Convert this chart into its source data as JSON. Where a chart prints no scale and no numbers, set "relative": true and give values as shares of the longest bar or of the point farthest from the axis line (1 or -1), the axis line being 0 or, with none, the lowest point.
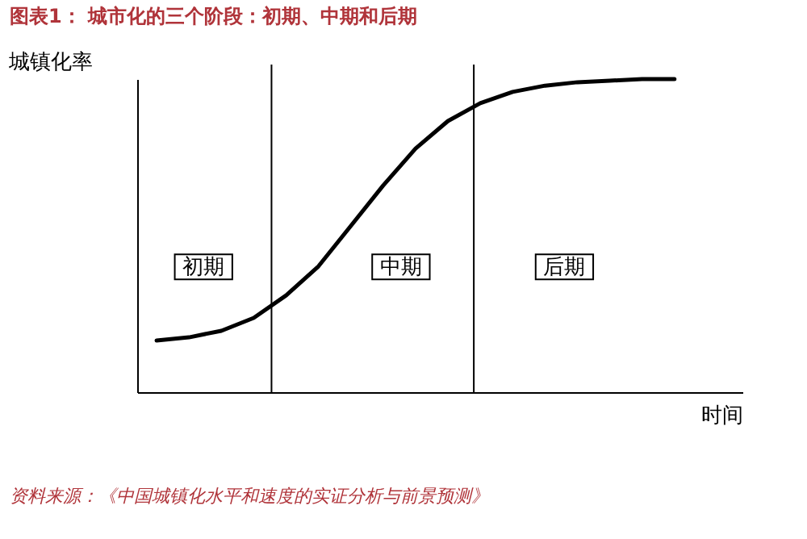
{
  "chart_data": {
    "type": "line",
    "title": "图表1： 城市化的三个阶段：初期、中期和后期",
    "xlabel": "时间",
    "ylabel": "城镇化率",
    "relative": true,
    "tick_labels": false,
    "categories": [
      null,
      null,
      null,
      null,
      null,
      null,
      null,
      null,
      null,
      null,
      null,
      null,
      null,
      null,
      null,
      null,
      null
    ],
    "series": [
      {
        "color": "#000000",
        "values": [
          0.165,
          0.175,
          0.196,
          0.237,
          0.309,
          0.402,
          0.531,
          0.66,
          0.778,
          0.866,
          0.923,
          0.959,
          0.979,
          0.99,
          0.995,
          1,
          1
        ]
      }
    ],
    "annotations": [
      "初期",
      "中期",
      "后期",
      "资料来源：《中国城镇化水平和速度的实证分析与前景预测》"
    ]
  }
}
